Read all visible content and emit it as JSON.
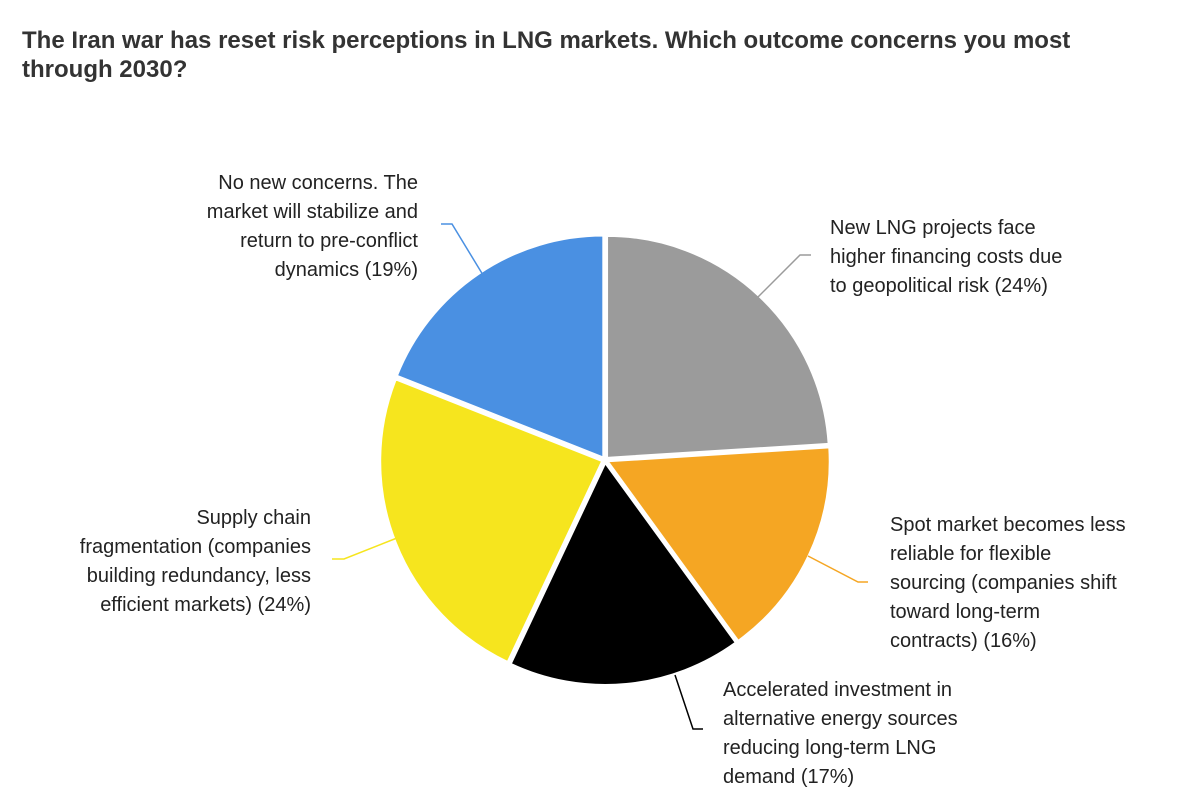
{
  "chart_data": {
    "type": "pie",
    "title": "The Iran war has reset risk perceptions in LNG markets. Which outcome concerns you most through 2030?",
    "slices": [
      {
        "label": "New LNG projects face higher financing costs due to geopolitical risk (24%)",
        "value": 24,
        "color": "#9b9b9b"
      },
      {
        "label": "Spot market becomes less reliable for flexible sourcing (companies shift toward long-term contracts) (16%)",
        "value": 16,
        "color": "#f5a623"
      },
      {
        "label": "Accelerated investment in alternative energy sources reducing long-term LNG demand (17%)",
        "value": 17,
        "color": "#000000"
      },
      {
        "label": "Supply chain fragmentation (companies building redundancy, less efficient markets) (24%)",
        "value": 24,
        "color": "#f6e51e"
      },
      {
        "label": "No new concerns. The market will stabilize and return to pre-conflict dynamics (19%)",
        "value": 19,
        "color": "#4a90e2"
      }
    ],
    "legend": "none",
    "direction": "clockwise"
  }
}
